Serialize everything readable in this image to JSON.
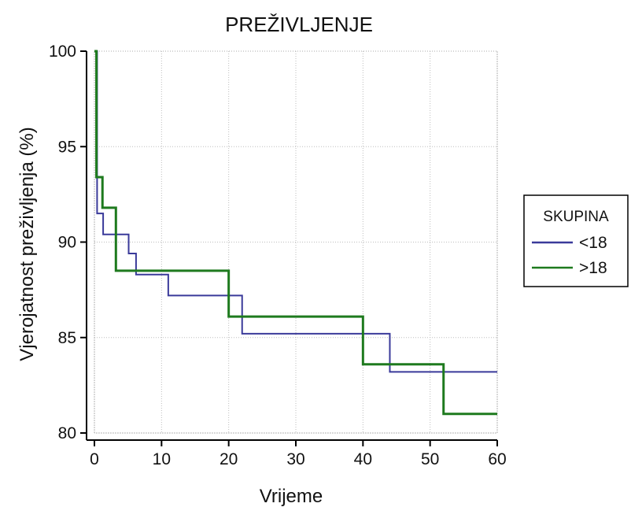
{
  "chart_data": {
    "type": "line",
    "step": true,
    "title": "PREŽIVLJENJE",
    "xlabel": "Vrijeme",
    "ylabel": "Vjerojatnost preživljenja (%)",
    "xlim": [
      0,
      60
    ],
    "ylim": [
      80,
      100
    ],
    "xticks": [
      0,
      10,
      20,
      30,
      40,
      50,
      60
    ],
    "yticks": [
      80,
      85,
      90,
      95,
      100
    ],
    "grid": true,
    "legend": {
      "title": "SKUPINA",
      "position": "right"
    },
    "series": [
      {
        "name": "<18",
        "color": "#3a3a9a",
        "x": [
          0,
          0.4,
          1.3,
          5.1,
          6.2,
          11,
          22,
          44,
          60
        ],
        "y": [
          100,
          91.5,
          90.4,
          89.4,
          88.3,
          87.2,
          85.2,
          83.2,
          83.2
        ]
      },
      {
        "name": ">18",
        "color": "#1e7a1e",
        "x": [
          0,
          0.3,
          1.2,
          3.2,
          20,
          40,
          52,
          60
        ],
        "y": [
          100,
          93.4,
          91.8,
          88.5,
          86.1,
          83.6,
          81,
          81
        ]
      }
    ]
  }
}
